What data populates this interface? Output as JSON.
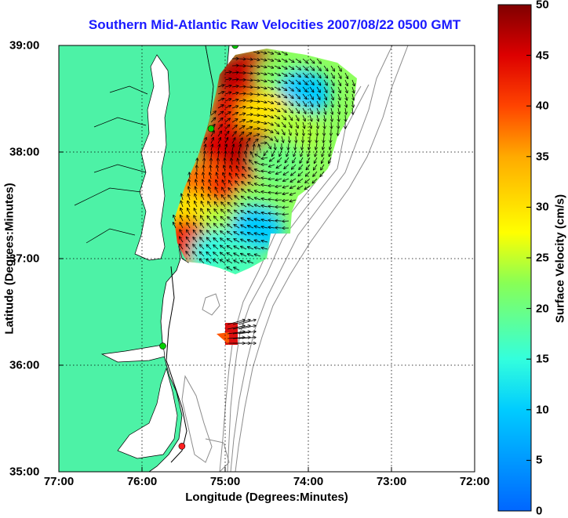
{
  "title": "Southern Mid-Atlantic Raw Velocities 2007/08/22 0500 GMT",
  "x_axis": {
    "label": "Longitude (Degrees:Minutes)",
    "ticks": [
      "77:00",
      "76:00",
      "75:00",
      "74:00",
      "73:00",
      "72:00"
    ]
  },
  "y_axis": {
    "label": "Latitude (Degrees:Minutes)",
    "ticks": [
      "39:00",
      "38:00",
      "37:00",
      "36:00",
      "35:00"
    ]
  },
  "colorbar": {
    "label": "Surface Velocity (cm/s)",
    "range": [
      0,
      50
    ],
    "ticks": [
      "50",
      "45",
      "40",
      "35",
      "30",
      "25",
      "20",
      "15",
      "10",
      "5",
      "0"
    ],
    "colormap": "jet"
  },
  "map": {
    "lon_range": [
      -77,
      -72
    ],
    "lat_range": [
      35,
      39
    ],
    "grid": "dotted",
    "land_color": "#4df2a6",
    "bathymetry_contour_color": "#8c8c8c",
    "station_markers": [
      {
        "color": "#00d000",
        "lon": -74.88,
        "lat": 39.0
      },
      {
        "color": "#00d000",
        "lon": -75.17,
        "lat": 38.22
      },
      {
        "color": "#00d000",
        "lon": -75.75,
        "lat": 36.18
      },
      {
        "color": "#ff2020",
        "lon": -75.52,
        "lat": 35.24
      }
    ],
    "velocity_cells": [
      {
        "lon": -74.8,
        "lat": 38.7,
        "value": 48
      },
      {
        "lon": -74.6,
        "lat": 38.75,
        "value": 46
      },
      {
        "lon": -74.3,
        "lat": 38.7,
        "value": 22
      },
      {
        "lon": -74.05,
        "lat": 38.55,
        "value": 10
      },
      {
        "lon": -74.85,
        "lat": 38.4,
        "value": 44
      },
      {
        "lon": -74.5,
        "lat": 38.35,
        "value": 30
      },
      {
        "lon": -74.15,
        "lat": 38.2,
        "value": 24
      },
      {
        "lon": -75.0,
        "lat": 38.05,
        "value": 45
      },
      {
        "lon": -74.7,
        "lat": 38.0,
        "value": 47
      },
      {
        "lon": -74.35,
        "lat": 37.9,
        "value": 20
      },
      {
        "lon": -75.25,
        "lat": 37.7,
        "value": 38
      },
      {
        "lon": -74.9,
        "lat": 37.65,
        "value": 42
      },
      {
        "lon": -74.6,
        "lat": 37.5,
        "value": 22
      },
      {
        "lon": -75.4,
        "lat": 37.4,
        "value": 30
      },
      {
        "lon": -75.0,
        "lat": 37.3,
        "value": 24
      },
      {
        "lon": -74.62,
        "lat": 37.28,
        "value": 10
      },
      {
        "lon": -75.5,
        "lat": 37.15,
        "value": 42
      },
      {
        "lon": -75.1,
        "lat": 37.05,
        "value": 14
      },
      {
        "lon": -74.85,
        "lat": 36.95,
        "value": 17
      },
      {
        "lon": -75.05,
        "lat": 36.5,
        "value": 46
      }
    ]
  }
}
